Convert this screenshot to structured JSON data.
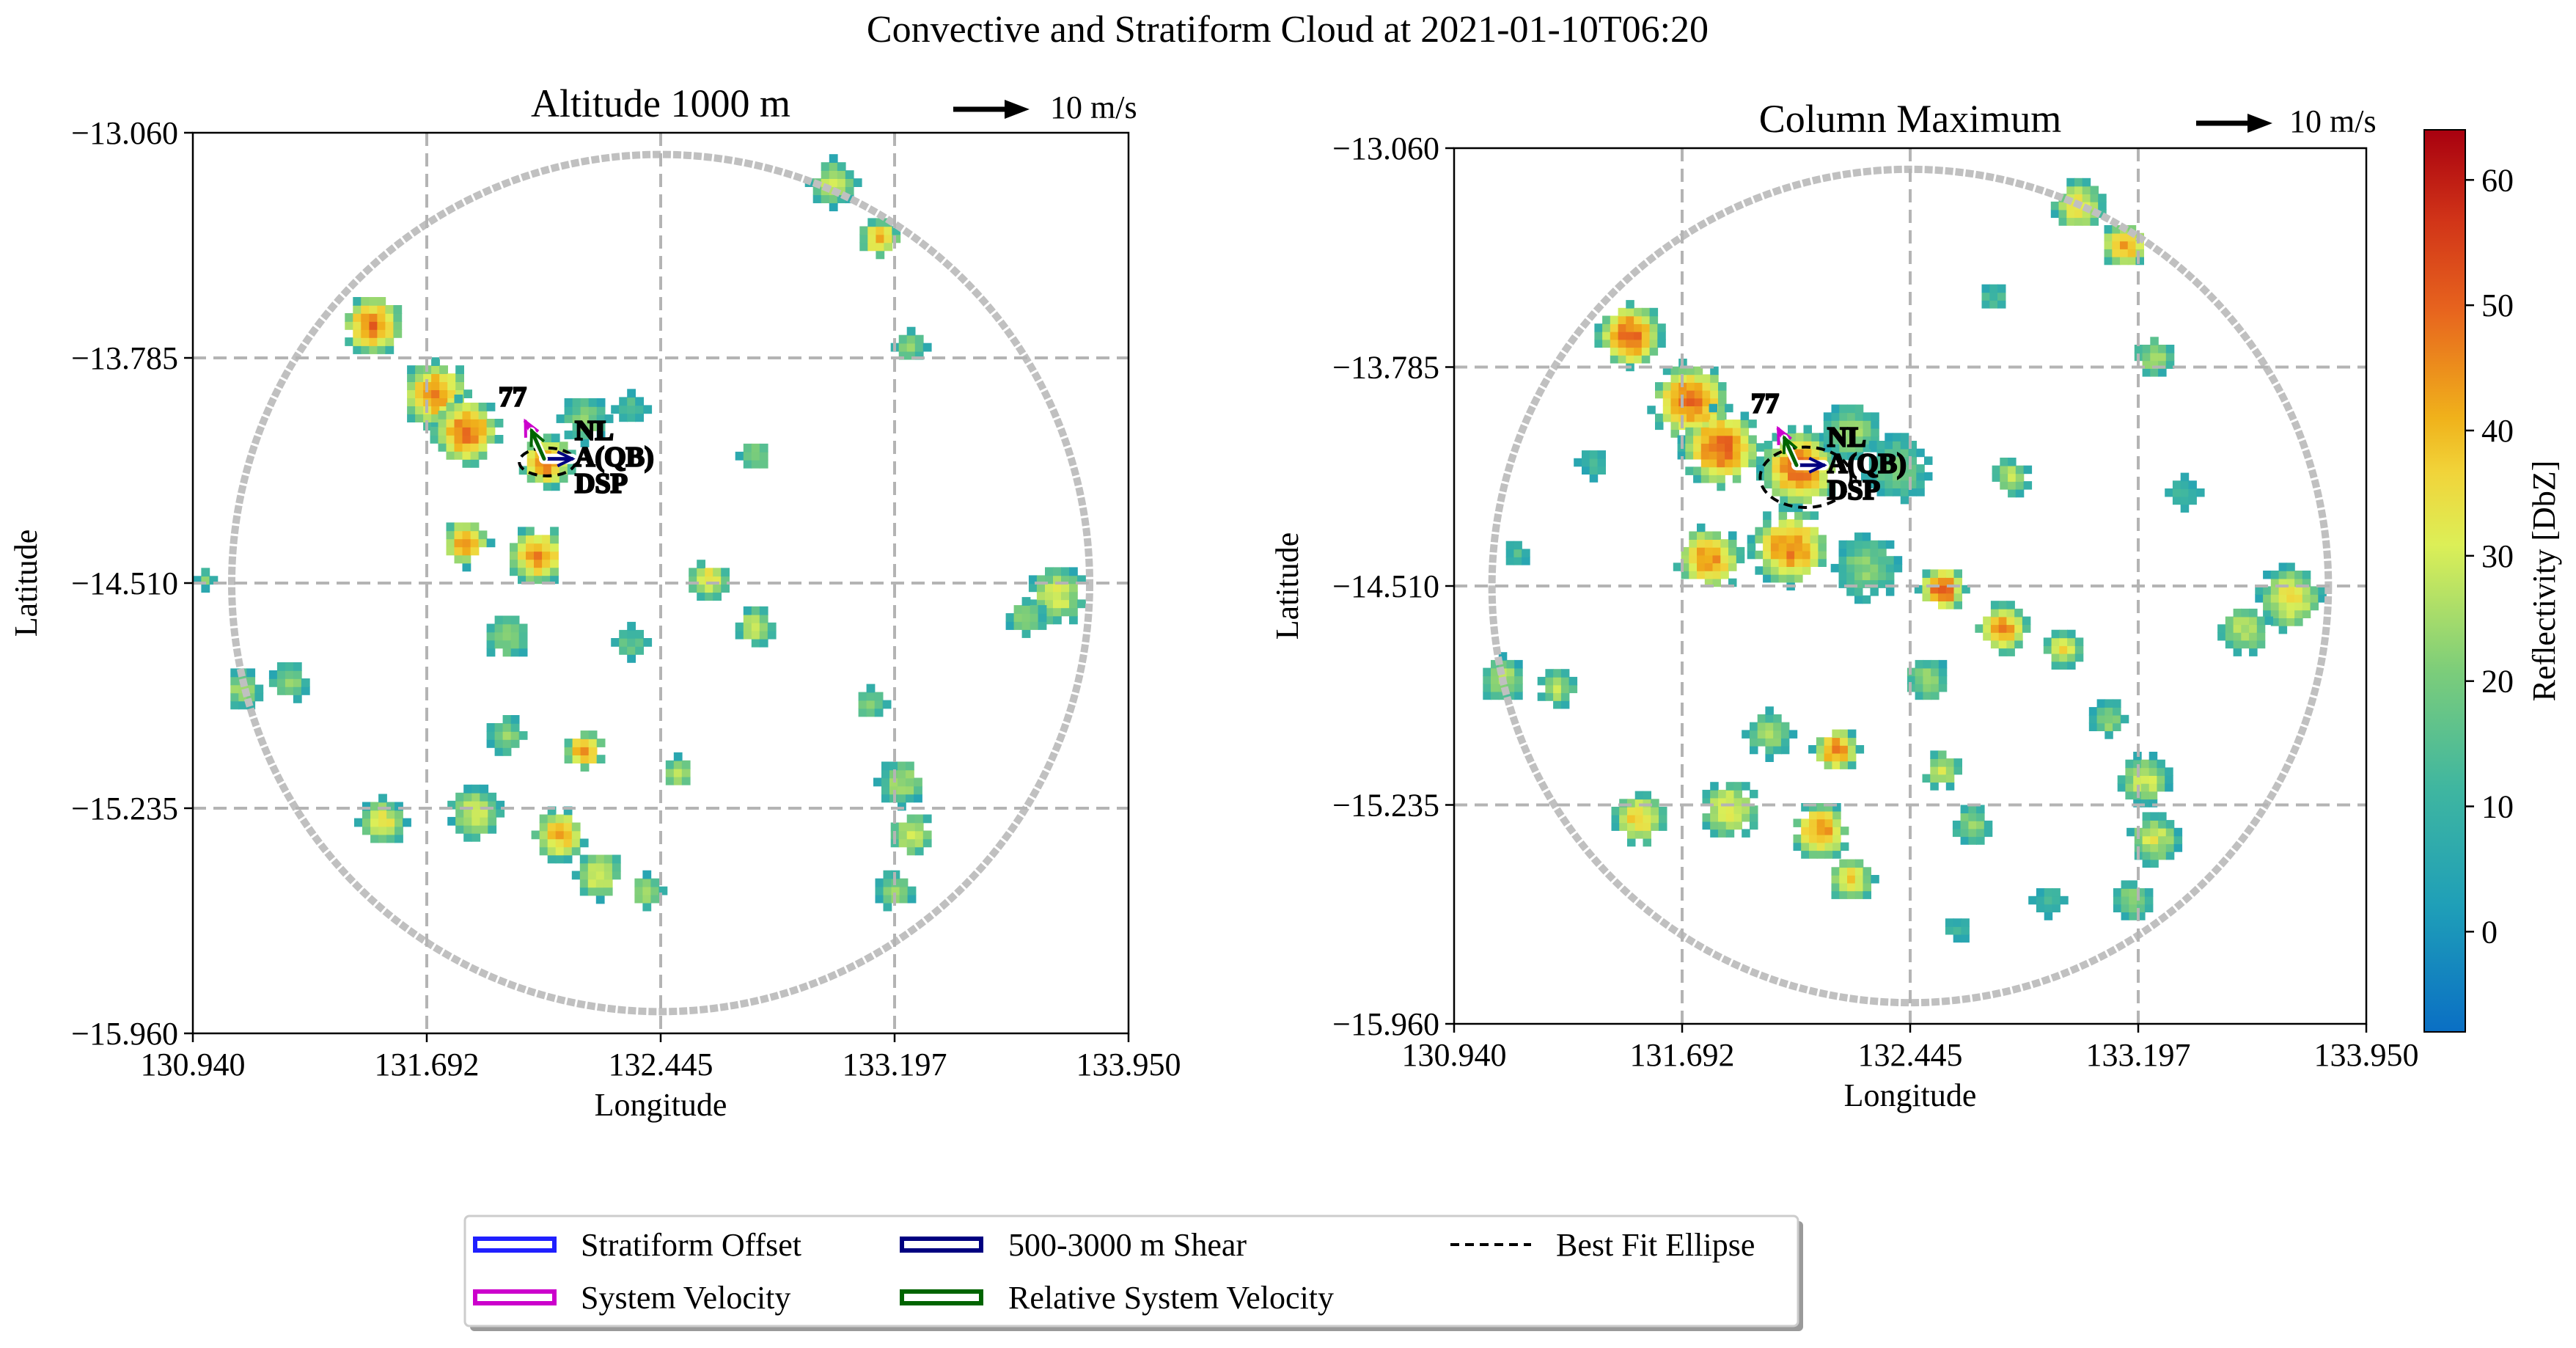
{
  "figure": {
    "title": "Convective and Stratiform Cloud at 2021-01-10T06:20"
  },
  "colors": {
    "radar_ring": "#c0c0c0",
    "grid": "#b4b4b4",
    "stratiform_offset": "#1f1fff",
    "system_velocity": "#cc00cc",
    "shear": "#000080",
    "relative_system_velocity": "#006400",
    "ellipse": "#000000"
  },
  "chart_data": [
    {
      "type": "heatmap",
      "title": "Altitude 1000 m",
      "xlabel": "Longitude",
      "ylabel": "Latitude",
      "xlim": [
        130.94,
        133.95
      ],
      "ylim": [
        -15.96,
        -13.06
      ],
      "xticks": [
        "130.940",
        "131.692",
        "132.445",
        "133.197",
        "133.950"
      ],
      "yticks": [
        "-13.060",
        "-13.785",
        "-14.510",
        "-15.235",
        "-15.960"
      ],
      "grid": true,
      "radar_center": [
        132.445,
        -14.51
      ],
      "radar_range_deg": 1.38,
      "wind_reference_label": "10 m/s",
      "system_label_id": "77",
      "annotations": [
        "NL",
        "A(QB)",
        "DSP"
      ],
      "system_center": [
        132.07,
        -14.11
      ],
      "vectors": {
        "stratiform_offset": [
          0.09,
          0.0
        ],
        "system_velocity": [
          -0.06,
          0.12
        ],
        "shear": [
          0.09,
          0.0
        ],
        "relative_system_velocity": [
          -0.04,
          0.09
        ]
      },
      "ellipse": {
        "center": [
          132.08,
          -14.12
        ],
        "rx_deg": 0.09,
        "ry_deg": 0.045
      },
      "echo_cells": [
        {
          "lon": 131.52,
          "lat": -13.68,
          "r": 0.09,
          "peak": 48
        },
        {
          "lon": 131.72,
          "lat": -13.9,
          "r": 0.1,
          "peak": 46
        },
        {
          "lon": 131.82,
          "lat": -14.02,
          "r": 0.1,
          "peak": 48
        },
        {
          "lon": 132.08,
          "lat": -14.12,
          "r": 0.08,
          "peak": 46
        },
        {
          "lon": 132.2,
          "lat": -13.98,
          "r": 0.07,
          "peak": 22
        },
        {
          "lon": 132.35,
          "lat": -13.95,
          "r": 0.05,
          "peak": 15
        },
        {
          "lon": 131.82,
          "lat": -14.38,
          "r": 0.07,
          "peak": 44
        },
        {
          "lon": 132.05,
          "lat": -14.42,
          "r": 0.09,
          "peak": 44
        },
        {
          "lon": 131.95,
          "lat": -14.68,
          "r": 0.07,
          "peak": 24
        },
        {
          "lon": 132.6,
          "lat": -14.5,
          "r": 0.06,
          "peak": 36
        },
        {
          "lon": 132.75,
          "lat": -14.65,
          "r": 0.06,
          "peak": 30
        },
        {
          "lon": 133.0,
          "lat": -13.22,
          "r": 0.07,
          "peak": 28
        },
        {
          "lon": 133.15,
          "lat": -13.4,
          "r": 0.06,
          "peak": 40
        },
        {
          "lon": 133.25,
          "lat": -13.75,
          "r": 0.05,
          "peak": 22
        },
        {
          "lon": 132.75,
          "lat": -14.1,
          "r": 0.05,
          "peak": 24
        },
        {
          "lon": 133.72,
          "lat": -14.55,
          "r": 0.09,
          "peak": 30
        },
        {
          "lon": 133.62,
          "lat": -14.62,
          "r": 0.06,
          "peak": 22
        },
        {
          "lon": 133.12,
          "lat": -14.9,
          "r": 0.05,
          "peak": 22
        },
        {
          "lon": 133.22,
          "lat": -15.15,
          "r": 0.07,
          "peak": 26
        },
        {
          "lon": 133.25,
          "lat": -15.32,
          "r": 0.07,
          "peak": 28
        },
        {
          "lon": 133.2,
          "lat": -15.5,
          "r": 0.06,
          "peak": 24
        },
        {
          "lon": 131.1,
          "lat": -14.85,
          "r": 0.06,
          "peak": 26
        },
        {
          "lon": 131.25,
          "lat": -14.83,
          "r": 0.06,
          "peak": 24
        },
        {
          "lon": 131.55,
          "lat": -15.28,
          "r": 0.07,
          "peak": 34
        },
        {
          "lon": 131.85,
          "lat": -15.25,
          "r": 0.08,
          "peak": 30
        },
        {
          "lon": 131.95,
          "lat": -15.0,
          "r": 0.06,
          "peak": 22
        },
        {
          "lon": 132.12,
          "lat": -15.32,
          "r": 0.08,
          "peak": 40
        },
        {
          "lon": 132.25,
          "lat": -15.45,
          "r": 0.07,
          "peak": 32
        },
        {
          "lon": 132.4,
          "lat": -15.5,
          "r": 0.05,
          "peak": 28
        },
        {
          "lon": 132.2,
          "lat": -15.05,
          "r": 0.06,
          "peak": 44
        },
        {
          "lon": 132.5,
          "lat": -15.12,
          "r": 0.05,
          "peak": 26
        },
        {
          "lon": 132.35,
          "lat": -14.7,
          "r": 0.05,
          "peak": 18
        },
        {
          "lon": 130.98,
          "lat": -14.5,
          "r": 0.03,
          "peak": 20
        }
      ]
    },
    {
      "type": "heatmap",
      "title": "Column Maximum",
      "xlabel": "Longitude",
      "ylabel": "Latitude",
      "xlim": [
        130.94,
        133.95
      ],
      "ylim": [
        -15.96,
        -13.06
      ],
      "xticks": [
        "130.940",
        "131.692",
        "132.445",
        "133.197",
        "133.950"
      ],
      "yticks": [
        "-13.060",
        "-13.785",
        "-14.510",
        "-15.235",
        "-15.960"
      ],
      "grid": true,
      "radar_center": [
        132.445,
        -14.51
      ],
      "radar_range_deg": 1.38,
      "wind_reference_label": "10 m/s",
      "system_label_id": "77",
      "annotations": [
        "NL",
        "A(QB)",
        "DSP"
      ],
      "system_center": [
        132.07,
        -14.11
      ],
      "vectors": {
        "stratiform_offset": [
          0.09,
          0.0
        ],
        "system_velocity": [
          -0.06,
          0.12
        ],
        "shear": [
          0.09,
          0.0
        ],
        "relative_system_velocity": [
          -0.04,
          0.09
        ]
      },
      "ellipse": {
        "center": [
          132.1,
          -14.15
        ],
        "rx_deg": 0.15,
        "ry_deg": 0.1
      },
      "colorbar": {
        "label": "Reflectivity [DbZ]",
        "vmin": -8,
        "vmax": 64,
        "ticks": [
          "0",
          "10",
          "20",
          "30",
          "40",
          "50",
          "60"
        ]
      },
      "echo_cells": [
        {
          "lon": 131.52,
          "lat": -13.68,
          "r": 0.1,
          "peak": 50
        },
        {
          "lon": 131.72,
          "lat": -13.9,
          "r": 0.12,
          "peak": 48
        },
        {
          "lon": 131.82,
          "lat": -14.05,
          "r": 0.12,
          "peak": 50
        },
        {
          "lon": 132.08,
          "lat": -14.12,
          "r": 0.12,
          "peak": 48
        },
        {
          "lon": 132.25,
          "lat": -14.0,
          "r": 0.09,
          "peak": 24
        },
        {
          "lon": 132.4,
          "lat": -14.12,
          "r": 0.1,
          "peak": 20
        },
        {
          "lon": 131.78,
          "lat": -14.42,
          "r": 0.1,
          "peak": 44
        },
        {
          "lon": 132.05,
          "lat": -14.38,
          "r": 0.12,
          "peak": 46
        },
        {
          "lon": 132.3,
          "lat": -14.45,
          "r": 0.1,
          "peak": 22
        },
        {
          "lon": 132.55,
          "lat": -14.52,
          "r": 0.07,
          "peak": 52
        },
        {
          "lon": 132.75,
          "lat": -14.65,
          "r": 0.08,
          "peak": 44
        },
        {
          "lon": 132.95,
          "lat": -14.72,
          "r": 0.06,
          "peak": 34
        },
        {
          "lon": 132.5,
          "lat": -14.82,
          "r": 0.07,
          "peak": 24
        },
        {
          "lon": 133.0,
          "lat": -13.25,
          "r": 0.08,
          "peak": 34
        },
        {
          "lon": 133.15,
          "lat": -13.38,
          "r": 0.07,
          "peak": 44
        },
        {
          "lon": 133.25,
          "lat": -13.75,
          "r": 0.06,
          "peak": 26
        },
        {
          "lon": 132.78,
          "lat": -14.15,
          "r": 0.06,
          "peak": 28
        },
        {
          "lon": 133.7,
          "lat": -14.55,
          "r": 0.1,
          "peak": 34
        },
        {
          "lon": 133.55,
          "lat": -14.65,
          "r": 0.08,
          "peak": 28
        },
        {
          "lon": 133.1,
          "lat": -14.95,
          "r": 0.06,
          "peak": 24
        },
        {
          "lon": 133.22,
          "lat": -15.15,
          "r": 0.08,
          "peak": 30
        },
        {
          "lon": 133.25,
          "lat": -15.35,
          "r": 0.08,
          "peak": 30
        },
        {
          "lon": 133.18,
          "lat": -15.55,
          "r": 0.06,
          "peak": 24
        },
        {
          "lon": 131.1,
          "lat": -14.82,
          "r": 0.07,
          "peak": 28
        },
        {
          "lon": 131.28,
          "lat": -14.85,
          "r": 0.06,
          "peak": 26
        },
        {
          "lon": 131.55,
          "lat": -15.28,
          "r": 0.08,
          "peak": 38
        },
        {
          "lon": 131.85,
          "lat": -15.25,
          "r": 0.09,
          "peak": 34
        },
        {
          "lon": 131.98,
          "lat": -15.0,
          "r": 0.07,
          "peak": 24
        },
        {
          "lon": 132.15,
          "lat": -15.32,
          "r": 0.09,
          "peak": 44
        },
        {
          "lon": 132.25,
          "lat": -15.48,
          "r": 0.07,
          "peak": 36
        },
        {
          "lon": 132.2,
          "lat": -15.05,
          "r": 0.07,
          "peak": 46
        },
        {
          "lon": 132.55,
          "lat": -15.12,
          "r": 0.06,
          "peak": 30
        },
        {
          "lon": 132.65,
          "lat": -15.3,
          "r": 0.06,
          "peak": 24
        },
        {
          "lon": 132.72,
          "lat": -13.55,
          "r": 0.05,
          "peak": 14
        },
        {
          "lon": 131.4,
          "lat": -14.1,
          "r": 0.05,
          "peak": 12
        },
        {
          "lon": 131.15,
          "lat": -14.4,
          "r": 0.04,
          "peak": 14
        },
        {
          "lon": 132.9,
          "lat": -15.55,
          "r": 0.05,
          "peak": 12
        },
        {
          "lon": 132.6,
          "lat": -15.65,
          "r": 0.04,
          "peak": 10
        },
        {
          "lon": 133.35,
          "lat": -14.2,
          "r": 0.05,
          "peak": 14
        }
      ]
    }
  ],
  "legend": {
    "items": [
      {
        "key": "stratiform_offset",
        "label": "Stratiform Offset",
        "style": "box"
      },
      {
        "key": "shear",
        "label": "500-3000 m Shear",
        "style": "box"
      },
      {
        "key": "ellipse",
        "label": "Best Fit Ellipse",
        "style": "dashed"
      },
      {
        "key": "system_velocity",
        "label": "System Velocity",
        "style": "box"
      },
      {
        "key": "relative_system_velocity",
        "label": "Relative System Velocity",
        "style": "box"
      }
    ]
  }
}
